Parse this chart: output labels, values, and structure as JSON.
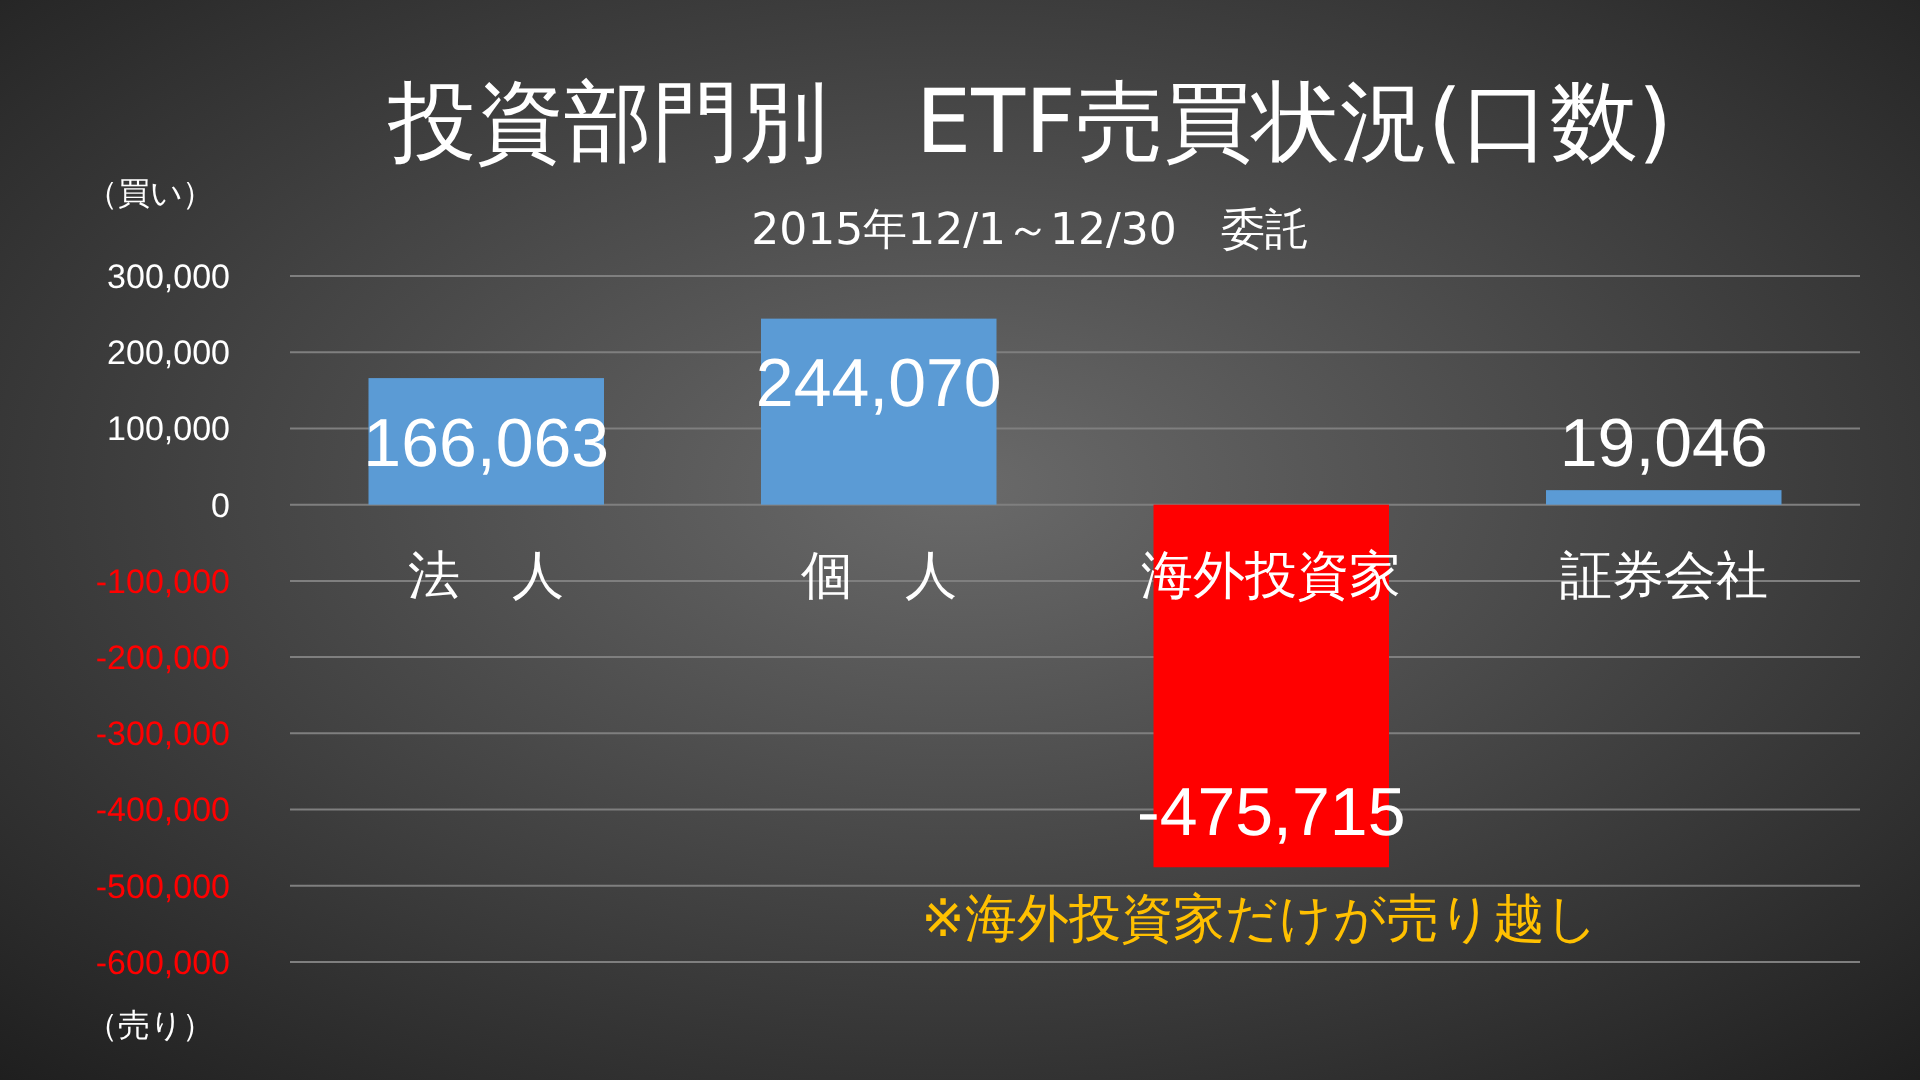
{
  "chart_data": {
    "type": "bar",
    "title": "投資部門別　ETF売買状況(口数)",
    "subtitle": "2015年12/1～12/30　委託",
    "categories": [
      "法　人",
      "個　人",
      "海外投資家",
      "証券会社"
    ],
    "values": [
      166063,
      244070,
      -475715,
      19046
    ],
    "colors": [
      "#5b9bd5",
      "#5b9bd5",
      "#ff0000",
      "#5b9bd5"
    ],
    "ylim": [
      -600000,
      300000
    ],
    "yticks": [
      {
        "value": -600000,
        "label": "-600,000"
      },
      {
        "value": -500000,
        "label": "-500,000"
      },
      {
        "value": -400000,
        "label": "-400,000"
      },
      {
        "value": -300000,
        "label": "-300,000"
      },
      {
        "value": -200000,
        "label": "-200,000"
      },
      {
        "value": -100000,
        "label": "-100,000"
      },
      0,
      {
        "value": 100000,
        "label": "100,000"
      },
      {
        "value": 200000,
        "label": "200,000"
      },
      {
        "value": 300000,
        "label": "300,000"
      }
    ],
    "grid": true,
    "value_labels": [
      "166,063",
      "244,070",
      "-475,715",
      "19,046"
    ],
    "annotations": [
      "（買い）",
      "（売り）",
      "※海外投資家だけが売り越し"
    ]
  }
}
